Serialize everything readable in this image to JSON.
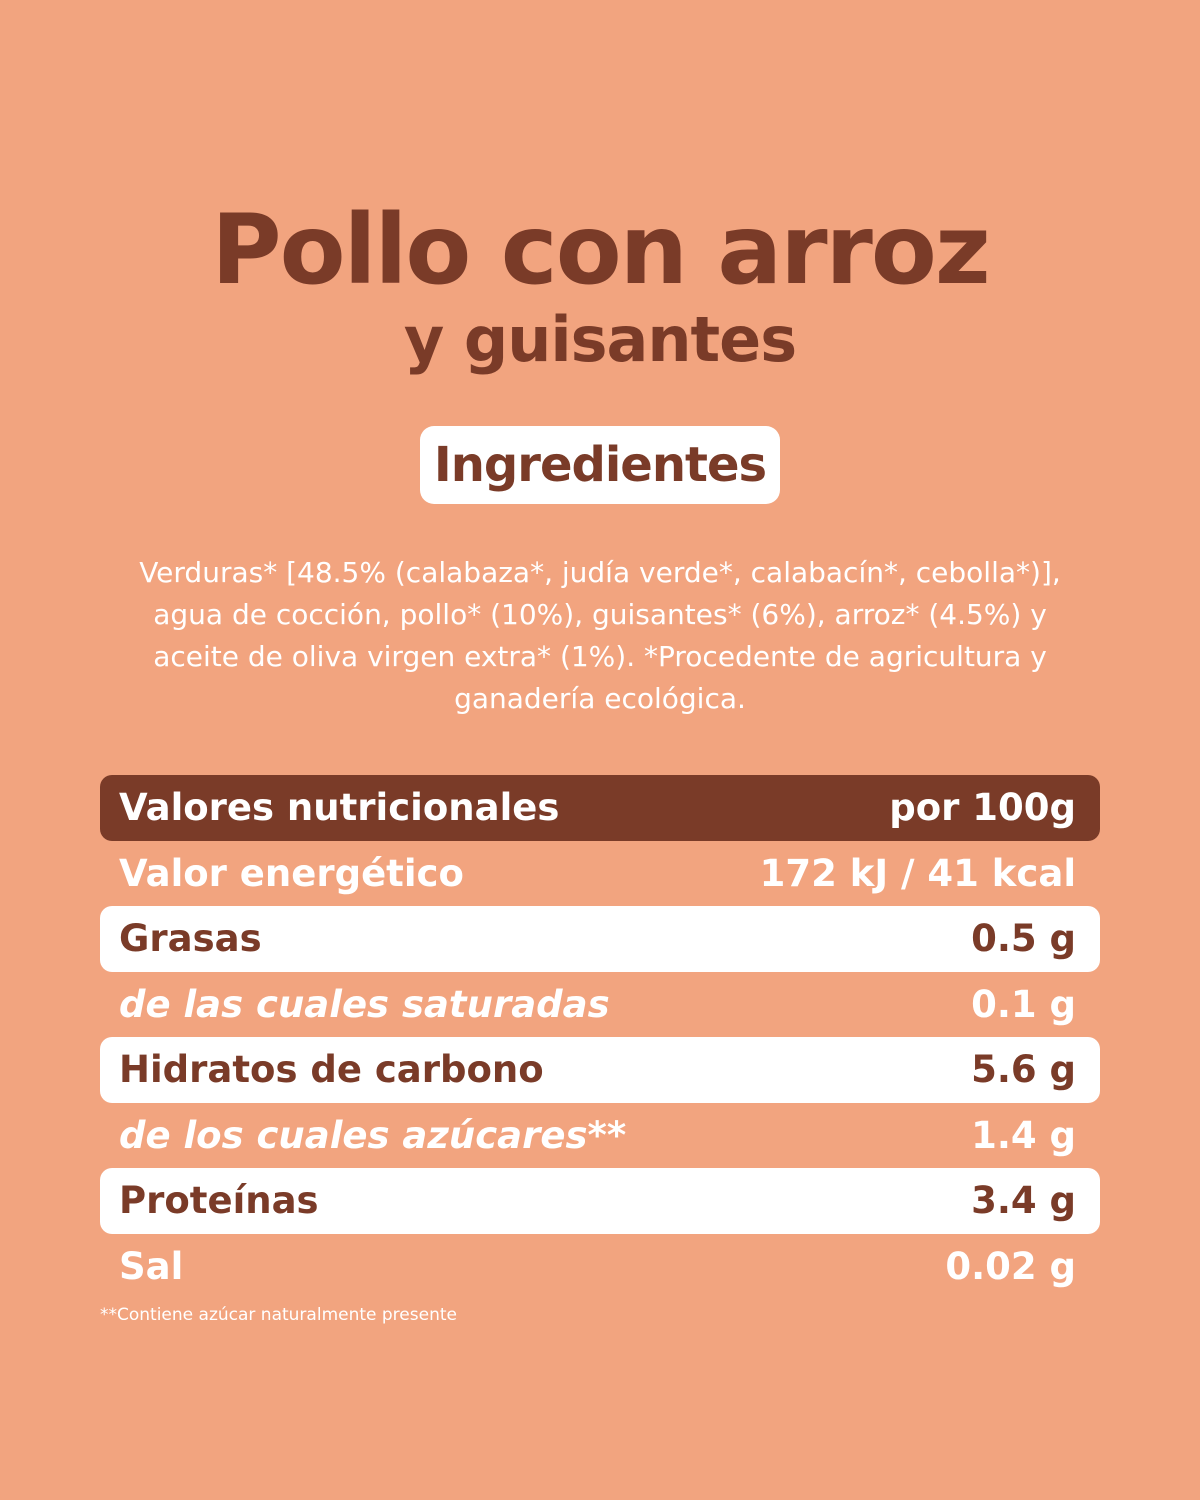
{
  "product": {
    "title": "Pollo con arroz",
    "subtitle": "y guisantes"
  },
  "ingredients": {
    "heading": "Ingredientes",
    "text": "Verduras* [48.5% (calabaza*, judía verde*, calabacín*, cebolla*)],\nagua de cocción, pollo* (10%), guisantes* (6%), arroz* (4.5%) y\naceite de oliva virgen extra* (1%). *Procedente de agricultura y\nganadería ecológica."
  },
  "nutrition": {
    "header_label": "Valores nutricionales",
    "header_value": "por 100g",
    "rows": [
      {
        "label": "Valor energético",
        "value": "172 kJ / 41 kcal"
      },
      {
        "label": "Grasas",
        "value": "0.5 g"
      },
      {
        "label": "de las cuales saturadas",
        "value": "0.1 g"
      },
      {
        "label": "Hidratos de carbono",
        "value": "5.6 g"
      },
      {
        "label": "de los cuales azúcares**",
        "value": "1.4 g"
      },
      {
        "label": "Proteínas",
        "value": "3.4 g"
      },
      {
        "label": "Sal",
        "value": "0.02 g"
      }
    ],
    "footnote": "**Contiene azúcar naturalmente presente"
  },
  "colors": {
    "background": "#F2A47F",
    "brown": "#7A3B28",
    "white": "#FFFFFF"
  }
}
